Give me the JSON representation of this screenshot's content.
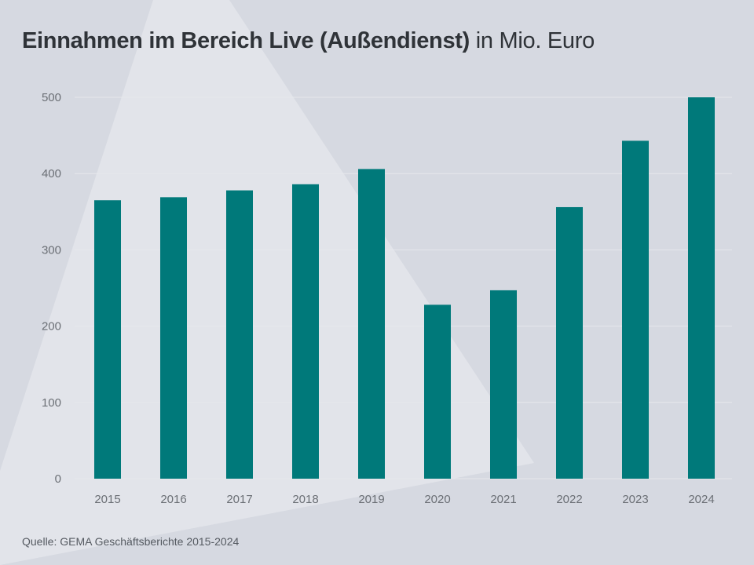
{
  "title": {
    "bold": "Einnahmen im Bereich Live (Außendienst)",
    "rest": "in Mio. Euro"
  },
  "source": "Quelle: GEMA Geschäftsberichte 2015-2024",
  "colors": {
    "bar": "#00797a",
    "background": "#d6d9e1",
    "tick_text": "#6b6f75",
    "grid": "#e6e8ec"
  },
  "chart_data": {
    "type": "bar",
    "title": "Einnahmen im Bereich Live (Außendienst) in Mio. Euro",
    "xlabel": "",
    "ylabel": "",
    "categories": [
      "2015",
      "2016",
      "2017",
      "2018",
      "2019",
      "2020",
      "2021",
      "2022",
      "2023",
      "2024"
    ],
    "values": [
      365,
      369,
      378,
      386,
      406,
      228,
      247,
      356,
      443,
      500
    ],
    "ylim": [
      0,
      500
    ],
    "yticks": [
      0,
      100,
      200,
      300,
      400,
      500
    ],
    "grid": true
  }
}
